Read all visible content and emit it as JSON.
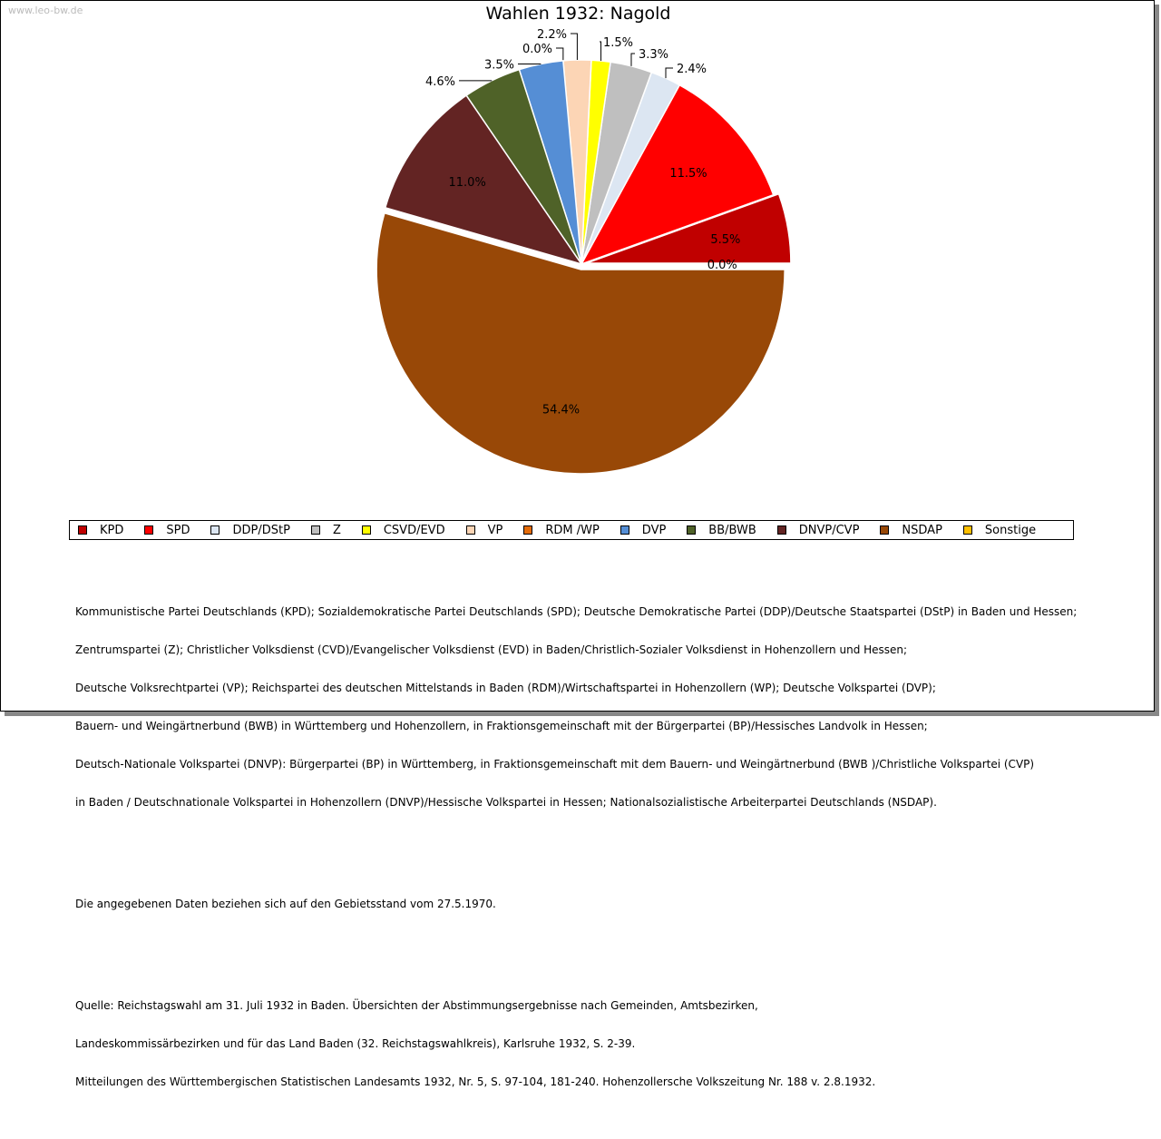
{
  "watermark": "www.leo-bw.de",
  "chart_data": {
    "type": "pie",
    "title": "Wahlen 1932: Nagold",
    "unit": "%",
    "legend_position": "bottom",
    "slices": [
      {
        "label": "KPD",
        "value": 5.5,
        "display": "5.5%",
        "color": "#c00000",
        "exploded": true
      },
      {
        "label": "SPD",
        "value": 11.5,
        "display": "11.5%",
        "color": "#ff0000",
        "exploded": false
      },
      {
        "label": "DDP/DStP",
        "value": 2.4,
        "display": "2.4%",
        "color": "#dce6f2",
        "exploded": false
      },
      {
        "label": "Z",
        "value": 3.3,
        "display": "3.3%",
        "color": "#bfbfbf",
        "exploded": false
      },
      {
        "label": "CSVD/EVD",
        "value": 1.5,
        "display": "1.5%",
        "color": "#ffff00",
        "exploded": false
      },
      {
        "label": "VP",
        "value": 2.2,
        "display": "2.2%",
        "color": "#fcd5b5",
        "exploded": false
      },
      {
        "label": "RDM /WP",
        "value": 0.0,
        "display": "0.0%",
        "color": "#e46c0a",
        "exploded": false
      },
      {
        "label": "DVP",
        "value": 3.5,
        "display": "3.5%",
        "color": "#558ed5",
        "exploded": false
      },
      {
        "label": "BB/BWB",
        "value": 4.6,
        "display": "4.6%",
        "color": "#4f6228",
        "exploded": false
      },
      {
        "label": "DNVP/CVP",
        "value": 11.0,
        "display": "11.0%",
        "color": "#632423",
        "exploded": false
      },
      {
        "label": "NSDAP",
        "value": 54.4,
        "display": "54.4%",
        "color": "#984807",
        "exploded": true
      },
      {
        "label": "Sonstige",
        "value": 0.0,
        "display": "0.0%",
        "color": "#ffc000",
        "exploded": false
      }
    ]
  },
  "notes": {
    "parties": [
      "Kommunistische Partei Deutschlands (KPD); Sozialdemokratische Partei Deutschlands (SPD); Deutsche Demokratische Partei (DDP)/Deutsche Staatspartei (DStP) in Baden und Hessen;",
      "Zentrumspartei (Z); Christlicher Volksdienst (CVD)/Evangelischer Volksdienst (EVD) in Baden/Christlich-Sozialer Volksdienst in Hohenzollern und Hessen;",
      "Deutsche Volksrechtpartei (VP); Reichspartei des deutschen Mittelstands in Baden (RDM)/Wirtschaftspartei in Hohenzollern (WP); Deutsche Volkspartei (DVP);",
      "Bauern- und Weingärtnerbund (BWB) in Württemberg und Hohenzollern, in Fraktionsgemeinschaft mit der Bürgerpartei (BP)/Hessisches Landvolk in Hessen;",
      "Deutsch-Nationale Volkspartei (DNVP): Bürgerpartei (BP) in Württemberg, in Fraktionsgemeinschaft mit dem Bauern- und Weingärtnerbund (BWB )/Christliche Volkspartei (CVP)",
      "in Baden / Deutschnationale Volkspartei in Hohenzollern (DNVP)/Hessische Volkspartei in Hessen; Nationalsozialistische Arbeiterpartei Deutschlands (NSDAP)."
    ],
    "territory": "Die angegebenen Daten beziehen sich auf den Gebietsstand vom 27.5.1970.",
    "source": [
      "Quelle: Reichstagswahl am 31. Juli 1932 in Baden. Übersichten der Abstimmungsergebnisse nach Gemeinden, Amtsbezirken,",
      "Landeskommissärbezirken und für das Land Baden (32. Reichstagswahlkreis), Karlsruhe 1932, S. 2-39.",
      "Mitteilungen des Württembergischen Statistischen Landesamts 1932, Nr. 5, S. 97-104, 181-240. Hohenzollersche Volkszeitung Nr. 188 v. 2.8.1932."
    ]
  }
}
